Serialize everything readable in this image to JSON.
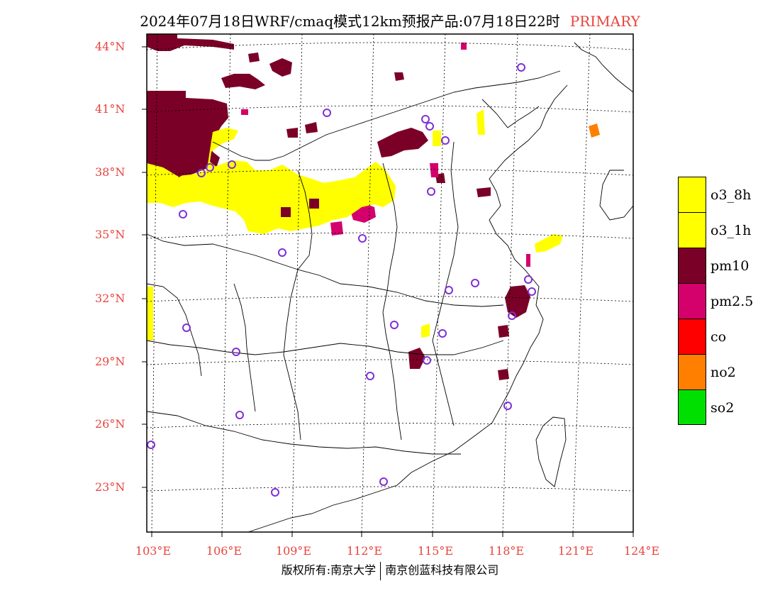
{
  "title": {
    "main": "2024年07月18日WRF/cmaq模式12km预报产品:07月18日22时",
    "tag": "PRIMARY"
  },
  "lat_labels": [
    "44°N",
    "41°N",
    "38°N",
    "35°N",
    "32°N",
    "29°N",
    "26°N",
    "23°N"
  ],
  "lon_labels": [
    "103°E",
    "106°E",
    "109°E",
    "112°E",
    "115°E",
    "118°E",
    "121°E",
    "124°E"
  ],
  "legend": [
    {
      "label": "o3_8h",
      "color": "#ffff00"
    },
    {
      "label": "o3_1h",
      "color": "#ffff00"
    },
    {
      "label": "pm10",
      "color": "#7b0028"
    },
    {
      "label": "pm2.5",
      "color": "#d4006c"
    },
    {
      "label": "co",
      "color": "#ff0000"
    },
    {
      "label": "no2",
      "color": "#ff7f00"
    },
    {
      "label": "so2",
      "color": "#00e000"
    }
  ],
  "footer": {
    "left": "版权所有:南京大学",
    "right": "南京创蓝科技有限公司"
  }
}
